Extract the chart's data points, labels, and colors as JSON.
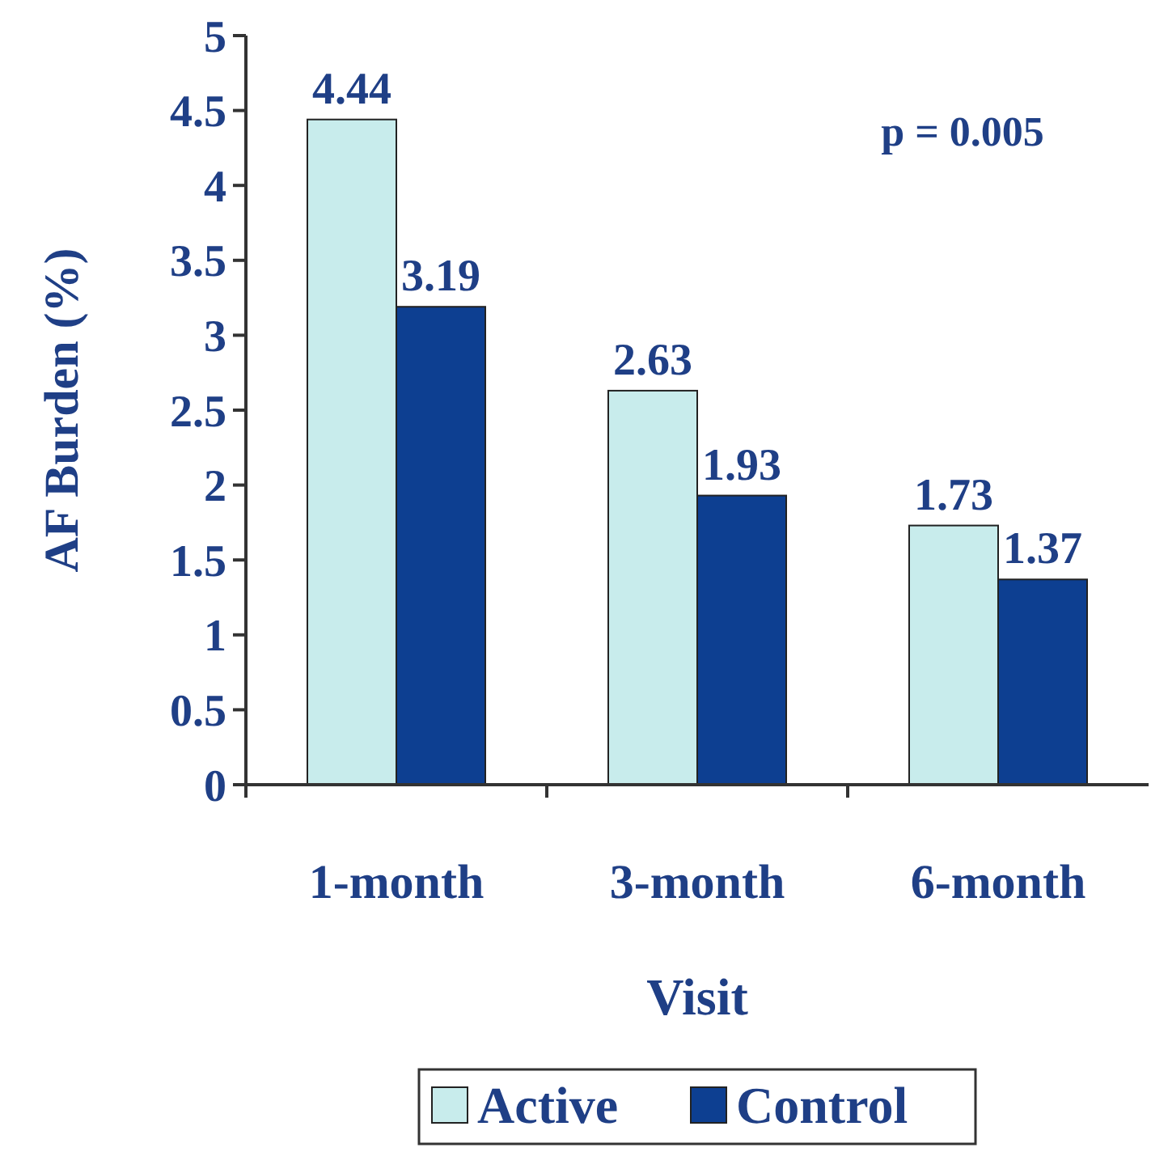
{
  "chart_data": {
    "type": "bar",
    "xlabel": "Visit",
    "ylabel": "AF Burden (%)",
    "categories": [
      "1-month",
      "3-month",
      "6-month"
    ],
    "series": [
      {
        "name": "Active",
        "color": "#c8ecec",
        "values": [
          4.44,
          2.63,
          1.73
        ]
      },
      {
        "name": "Control",
        "color": "#0d3f91",
        "values": [
          3.19,
          1.93,
          1.37
        ]
      }
    ],
    "ylim": [
      0,
      5
    ],
    "yticks": [
      0,
      0.5,
      1,
      1.5,
      2,
      2.5,
      3,
      3.5,
      4,
      4.5,
      5
    ],
    "data_labels": true,
    "legend": "bottom",
    "grid": false,
    "annotations": [
      "p = 0.005"
    ]
  }
}
